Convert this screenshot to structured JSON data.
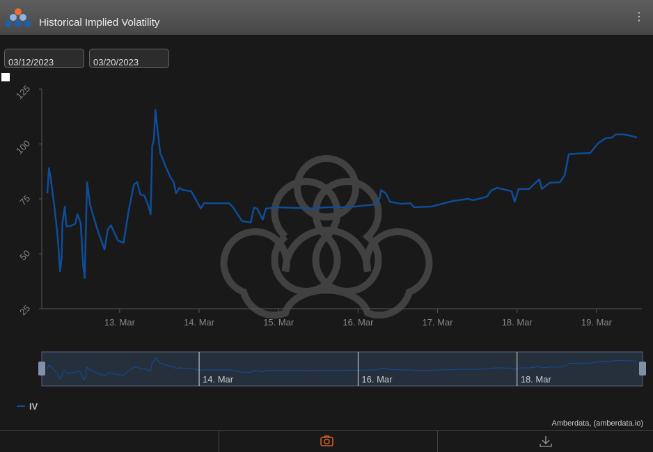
{
  "header": {
    "title": "Historical Implied Volatility"
  },
  "date_range": {
    "start": "03/12/2023",
    "end": "03/20/2023"
  },
  "chart_data": {
    "type": "line",
    "x": [
      12.09,
      12.11,
      12.13,
      12.18,
      12.22,
      12.25,
      12.27,
      12.28,
      12.31,
      12.33,
      12.37,
      12.44,
      12.47,
      12.51,
      12.54,
      12.56,
      12.59,
      12.63,
      12.72,
      12.81,
      12.85,
      12.89,
      12.98,
      13.05,
      13.11,
      13.18,
      13.22,
      13.26,
      13.31,
      13.36,
      13.39,
      13.41,
      13.43,
      13.45,
      13.47,
      13.51,
      13.58,
      13.64,
      13.68,
      13.71,
      13.75,
      13.8,
      13.9,
      13.95,
      14.02,
      14.06,
      14.3,
      14.38,
      14.43,
      14.54,
      14.65,
      14.69,
      14.73,
      14.8,
      14.84,
      15.0,
      15.22,
      15.39,
      15.61,
      15.78,
      15.96,
      16.22,
      16.27,
      16.29,
      16.35,
      16.4,
      16.53,
      16.66,
      16.7,
      16.92,
      17.19,
      17.38,
      17.45,
      17.62,
      17.68,
      17.75,
      17.93,
      17.97,
      18.02,
      18.15,
      18.24,
      18.28,
      18.31,
      18.41,
      18.54,
      18.6,
      18.65,
      18.76,
      18.92,
      19.02,
      19.11,
      19.2,
      19.24,
      19.33,
      19.42,
      19.51
    ],
    "series": [
      {
        "name": "IV",
        "color": "#0f4d99",
        "values": [
          77.5,
          89,
          85,
          71,
          58,
          42,
          48,
          64,
          71.5,
          62.5,
          62.5,
          63.6,
          68,
          64,
          45,
          39,
          82.6,
          72,
          61,
          52,
          61,
          63,
          56,
          55,
          69,
          81.6,
          82.6,
          77,
          76.5,
          72,
          68,
          99,
          102,
          115.5,
          108.5,
          96,
          89.6,
          84.8,
          82.6,
          77.5,
          80,
          79,
          78.5,
          75.3,
          70.6,
          73,
          73,
          73,
          71,
          64.9,
          64.2,
          71,
          70.6,
          65.5,
          70.6,
          71.2,
          70.9,
          70.6,
          71.2,
          71.2,
          71.5,
          72.5,
          75.3,
          79,
          77.5,
          73.7,
          72.8,
          73,
          71.2,
          71.5,
          74,
          75,
          74.4,
          76,
          79,
          80,
          78.5,
          73.7,
          79.5,
          79.5,
          82.6,
          84,
          79.5,
          82.3,
          82.6,
          85.8,
          95.3,
          95.6,
          95.9,
          100.3,
          102.5,
          103,
          104.4,
          104.4,
          103.8,
          102.9
        ]
      }
    ],
    "xlim": [
      12.02,
      19.57
    ],
    "xticks": [
      {
        "value": 13,
        "label": "13. Mar"
      },
      {
        "value": 14,
        "label": "14. Mar"
      },
      {
        "value": 15,
        "label": "15. Mar"
      },
      {
        "value": 16,
        "label": "16. Mar"
      },
      {
        "value": 17,
        "label": "17. Mar"
      },
      {
        "value": 18,
        "label": "18. Mar"
      },
      {
        "value": 19,
        "label": "19. Mar"
      }
    ],
    "ylim": [
      25,
      125
    ],
    "yticks": [
      25,
      50,
      75,
      100,
      125
    ],
    "grid": false,
    "navigator": {
      "xticks": [
        {
          "value": 14,
          "label": "14. Mar"
        },
        {
          "value": 16,
          "label": "16. Mar"
        },
        {
          "value": 18,
          "label": "18. Mar"
        }
      ]
    },
    "credit": "Amberdata, (amberdata.io)"
  }
}
